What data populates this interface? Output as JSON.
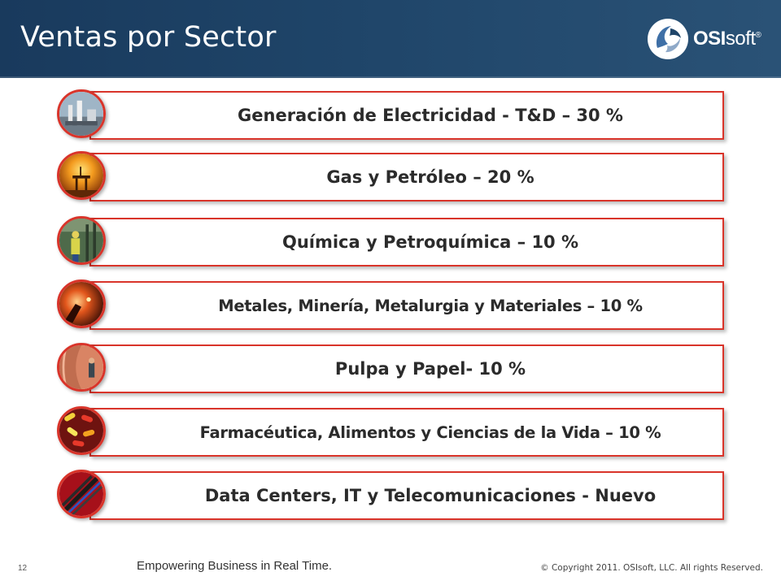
{
  "slide": {
    "title": "Ventas por Sector",
    "logo_text_bold": "OSI",
    "logo_text_rest": "soft",
    "logo_registered": "®"
  },
  "sectors": [
    {
      "label": "Generación de Electricidad - T&D – 30 %",
      "image_icon": "power-plant-icon"
    },
    {
      "label": "Gas y Petróleo – 20 %",
      "image_icon": "oil-rig-sunset-icon"
    },
    {
      "label": "Química y Petroquímica – 10 %",
      "image_icon": "chemical-worker-icon"
    },
    {
      "label": "Metales, Minería, Metalurgia y Materiales – 10 %",
      "image_icon": "molten-metal-icon"
    },
    {
      "label": "Pulpa y Papel- 10 %",
      "image_icon": "paper-roll-icon"
    },
    {
      "label": "Farmacéutica, Alimentos y Ciencias de la Vida – 10 %",
      "image_icon": "capsules-icon"
    },
    {
      "label": "Data Centers, IT y Telecomunicaciones - Nuevo",
      "image_icon": "fiber-cables-icon"
    }
  ],
  "footer": {
    "page_number": "12",
    "tagline": "Empowering Business in Real Time.",
    "copyright": "© Copyright 2011. OSIsoft, LLC.  All rights Reserved."
  },
  "colors": {
    "header_bg": "#1f4569",
    "accent_red": "#d9342a",
    "text_dark": "#2b2b2b"
  }
}
